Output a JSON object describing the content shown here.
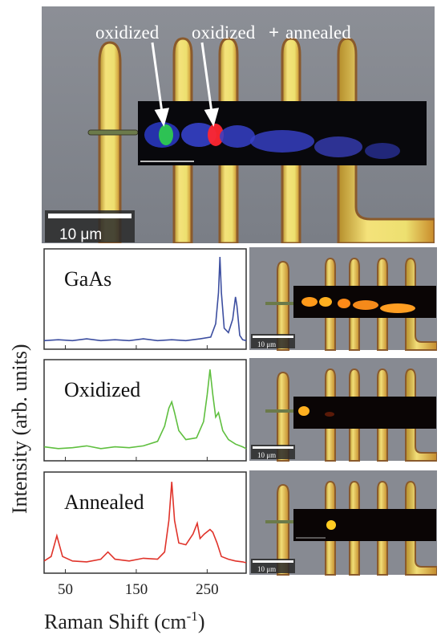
{
  "figure": {
    "top_image": {
      "arrow_labels": [
        "oxidized",
        "oxidized",
        "annealed"
      ],
      "plus_sign": "+",
      "scale_bar": "10 μm"
    },
    "axis": {
      "ylabel": "Intensity (arb. units)",
      "xlabel_main": "Raman Shift (cm",
      "xlabel_sup": "-1",
      "xlabel_close": ")",
      "xticks": [
        50,
        150,
        250
      ]
    },
    "side_maps": {
      "scale_bar": "10 μm"
    }
  },
  "chart_data": [
    {
      "type": "line",
      "name": "GaAs",
      "color": "#3c4ea0",
      "x": [
        20,
        40,
        60,
        80,
        100,
        120,
        140,
        160,
        180,
        200,
        220,
        240,
        255,
        262,
        266,
        268,
        270,
        274,
        280,
        286,
        290,
        292,
        296,
        300,
        305
      ],
      "y": [
        0.06,
        0.07,
        0.06,
        0.08,
        0.06,
        0.07,
        0.06,
        0.08,
        0.06,
        0.07,
        0.06,
        0.08,
        0.1,
        0.25,
        0.6,
        1.0,
        0.6,
        0.2,
        0.15,
        0.3,
        0.55,
        0.45,
        0.12,
        0.07,
        0.06
      ],
      "xlim": [
        20,
        305
      ]
    },
    {
      "type": "line",
      "name": "Oxidized",
      "color": "#5fbf3f",
      "x": [
        20,
        40,
        60,
        80,
        100,
        120,
        140,
        160,
        180,
        190,
        196,
        200,
        204,
        210,
        220,
        235,
        245,
        250,
        254,
        258,
        262,
        266,
        272,
        280,
        290,
        300,
        305
      ],
      "y": [
        0.12,
        0.1,
        0.11,
        0.13,
        0.1,
        0.12,
        0.11,
        0.13,
        0.18,
        0.35,
        0.55,
        0.62,
        0.5,
        0.3,
        0.2,
        0.22,
        0.4,
        0.7,
        0.98,
        0.7,
        0.45,
        0.5,
        0.3,
        0.2,
        0.15,
        0.12,
        0.1
      ],
      "xlim": [
        20,
        305
      ]
    },
    {
      "type": "line",
      "name": "Annealed",
      "color": "#e0332a",
      "x": [
        20,
        30,
        38,
        46,
        60,
        80,
        100,
        110,
        120,
        140,
        160,
        180,
        190,
        196,
        200,
        204,
        210,
        220,
        230,
        236,
        240,
        246,
        254,
        258,
        264,
        270,
        280,
        290,
        300,
        305
      ],
      "y": [
        0.1,
        0.15,
        0.38,
        0.15,
        0.1,
        0.09,
        0.12,
        0.2,
        0.12,
        0.1,
        0.13,
        0.12,
        0.2,
        0.55,
        0.98,
        0.55,
        0.3,
        0.28,
        0.4,
        0.52,
        0.35,
        0.4,
        0.45,
        0.42,
        0.3,
        0.15,
        0.12,
        0.1,
        0.09,
        0.08
      ],
      "xlim": [
        20,
        305
      ]
    }
  ]
}
